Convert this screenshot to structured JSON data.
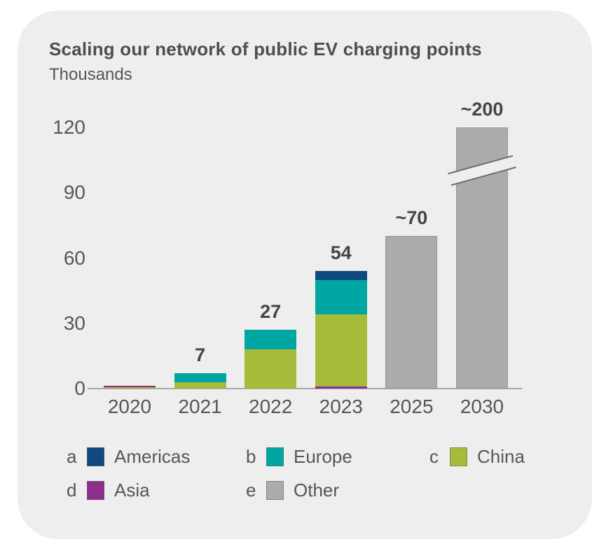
{
  "chart_data": {
    "type": "bar",
    "variant": "stacked",
    "title": "Scaling our network of public EV charging points",
    "subtitle": "Thousands",
    "categories": [
      "2020",
      "2021",
      "2022",
      "2023",
      "2025",
      "2030"
    ],
    "y_ticks": [
      120,
      90,
      60,
      30,
      0
    ],
    "ylim": [
      0,
      120
    ],
    "grid": false,
    "legend_position": "bottom",
    "series_colors": {
      "Americas": "#10497e",
      "Europe": "#00a7a2",
      "China": "#a7bb3b",
      "Asia": "#8b2f8d",
      "Other": "#a9abad"
    },
    "bars": [
      {
        "category": "2020",
        "label": "",
        "total": 1.2,
        "segments": [
          {
            "series": "China",
            "value": 0.8
          },
          {
            "series": "Asia",
            "value": 0.4
          }
        ]
      },
      {
        "category": "2021",
        "label": "7",
        "total": 7,
        "segments": [
          {
            "series": "China",
            "value": 3
          },
          {
            "series": "Europe",
            "value": 4
          }
        ]
      },
      {
        "category": "2022",
        "label": "27",
        "total": 27,
        "segments": [
          {
            "series": "China",
            "value": 18
          },
          {
            "series": "Europe",
            "value": 9
          }
        ]
      },
      {
        "category": "2023",
        "label": "54",
        "total": 54,
        "segments": [
          {
            "series": "Asia",
            "value": 1
          },
          {
            "series": "China",
            "value": 33
          },
          {
            "series": "Europe",
            "value": 16
          },
          {
            "series": "Americas",
            "value": 4
          }
        ]
      },
      {
        "category": "2025",
        "label": "~70",
        "total": 70,
        "segments": [
          {
            "series": "Other",
            "value": 70
          }
        ]
      },
      {
        "category": "2030",
        "label": "~200",
        "total": 200,
        "axis_break": true,
        "visual_cap": 120,
        "segments": [
          {
            "series": "Other",
            "value": 200
          }
        ]
      }
    ],
    "legend": [
      {
        "key": "a",
        "label": "Americas",
        "color": "#10497e"
      },
      {
        "key": "b",
        "label": "Europe",
        "color": "#00a7a2"
      },
      {
        "key": "c",
        "label": "China",
        "color": "#a7bb3b"
      },
      {
        "key": "d",
        "label": "Asia",
        "color": "#8b2f8d"
      },
      {
        "key": "e",
        "label": "Other",
        "color": "#a9abad"
      }
    ],
    "colors": {
      "card_background": "#efeeee",
      "page_background": "#ffffff",
      "axis_line": "#a8a9ad",
      "text": "#55565a",
      "value_label_text": "#44454a",
      "break_line": "#6b6d70"
    }
  }
}
